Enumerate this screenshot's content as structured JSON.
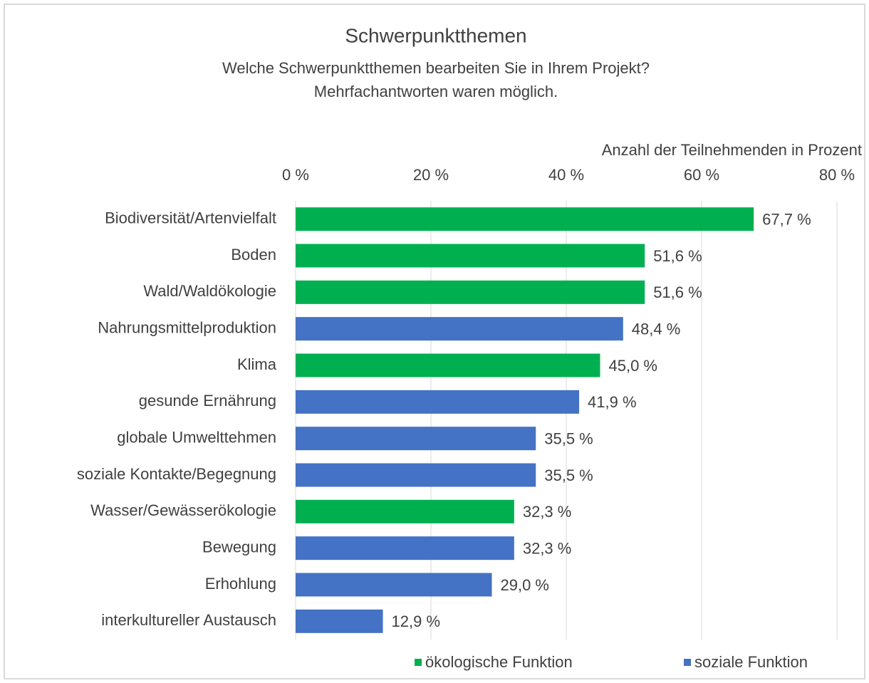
{
  "chart_data": {
    "type": "bar",
    "orientation": "horizontal",
    "title": "Schwerpunktthemen",
    "subtitle": [
      "Welche Schwerpunktthemen  bearbeiten Sie in Ihrem Projekt?",
      "Mehrfachantworten waren möglich."
    ],
    "x_label": "Anzahl der Teilnehmenden  in Prozent",
    "categories": [
      "Biodiversität/Artenvielfalt",
      "Boden",
      "Wald/Waldökologie",
      "Nahrungsmittelproduktion",
      "Klima",
      "gesunde Ernährung",
      "globale Umwelttehmen",
      "soziale Kontakte/Begegnung",
      "Wasser/Gewässerökologie",
      "Bewegung",
      "Erhohlung",
      "interkultureller Austausch"
    ],
    "series": [
      {
        "name": "ökologische Funktion",
        "color": "#00b050",
        "values": [
          67.7,
          51.6,
          51.6,
          null,
          45.0,
          null,
          null,
          null,
          32.3,
          null,
          null,
          null
        ],
        "value_labels": [
          "67,7 %",
          "51,6 %",
          "51,6 %",
          null,
          "45,0 %",
          null,
          null,
          null,
          "32,3 %",
          null,
          null,
          null
        ]
      },
      {
        "name": "soziale Funktion",
        "color": "#4472c4",
        "values": [
          null,
          null,
          null,
          48.4,
          null,
          41.9,
          35.5,
          35.5,
          null,
          32.3,
          29.0,
          12.9
        ],
        "value_labels": [
          null,
          null,
          null,
          "48,4 %",
          null,
          "41,9 %",
          "35,5 %",
          "35,5 %",
          null,
          "32,3 %",
          "29,0 %",
          "12,9 %"
        ]
      }
    ],
    "xlim": [
      0,
      80
    ],
    "xticks": [
      {
        "value": 0,
        "label": "0 %"
      },
      {
        "value": 20,
        "label": "20 %"
      },
      {
        "value": 40,
        "label": "40 %"
      },
      {
        "value": 60,
        "label": "60 %"
      },
      {
        "value": 80,
        "label": "80 %"
      }
    ],
    "grid": true,
    "legend": "bottom"
  }
}
